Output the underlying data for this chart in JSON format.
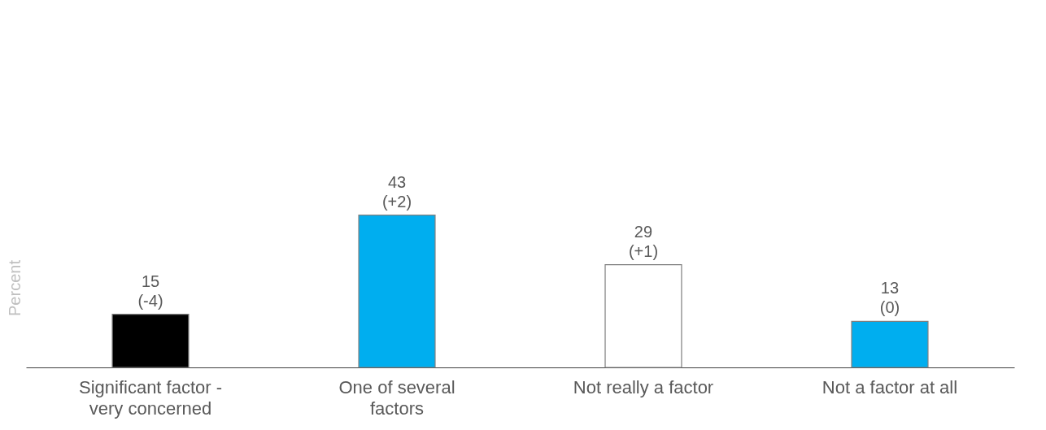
{
  "chart_data": {
    "type": "bar",
    "ylabel": "Percent",
    "categories": [
      "Significant factor - very concerned",
      "One of several factors",
      "Not really a factor",
      "Not a factor at all"
    ],
    "values": [
      15,
      43,
      29,
      13
    ],
    "colors": [
      "#000000",
      "#00aeef",
      "#ffffff",
      "#00aeef"
    ],
    "value_labels": [
      "15\n(-4)",
      "43\n(+2)",
      "29\n(+1)",
      "13\n(0)"
    ],
    "grid": false
  }
}
